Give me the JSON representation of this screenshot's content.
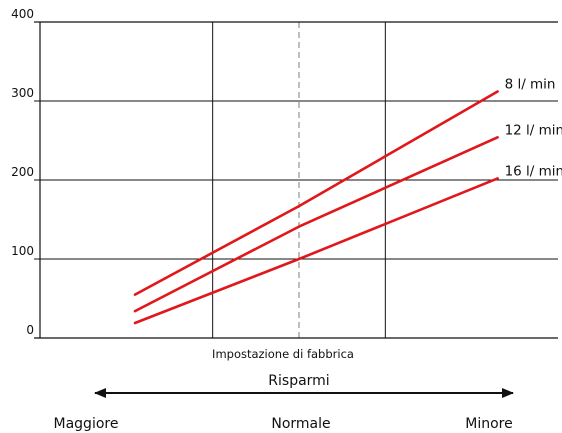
{
  "chart_data": {
    "type": "line",
    "ylim": [
      0,
      400
    ],
    "yticks": [
      "0",
      "100",
      "200",
      "300",
      "400"
    ],
    "xlim": [
      0,
      6
    ],
    "series": [
      {
        "name": "8 l/ min",
        "x": [
          1.1,
          3.0,
          5.3
        ],
        "y": [
          55,
          167,
          312
        ]
      },
      {
        "name": "12 l/ min",
        "x": [
          1.1,
          3.0,
          5.3
        ],
        "y": [
          34,
          141,
          254
        ]
      },
      {
        "name": "16 l/ min_",
        "x": [
          1.1,
          3.0,
          5.3
        ],
        "y": [
          19,
          100,
          202
        ]
      }
    ],
    "factory_setting_x": 3.0,
    "factory_setting_label": "Impostazione di fabbrica",
    "savings_label": "Risparmi",
    "x_categories": [
      "Maggiore",
      "Normale",
      "Minore"
    ],
    "line_color": "#e0181b",
    "grid": true
  }
}
